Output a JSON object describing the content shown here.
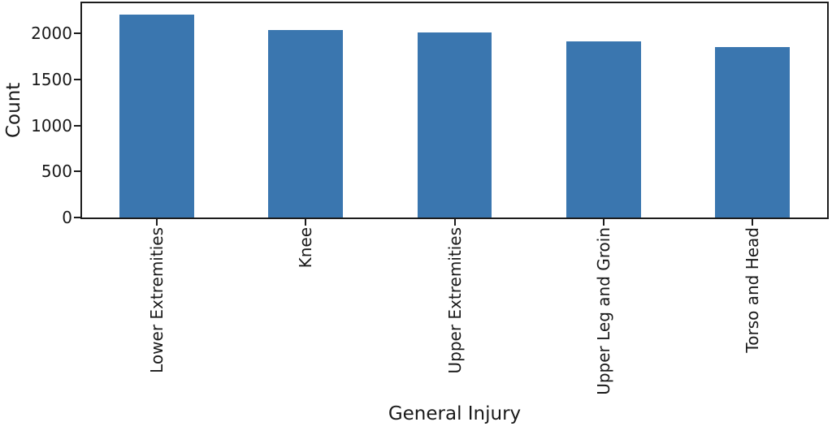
{
  "chart_data": {
    "type": "bar",
    "categories": [
      "Lower Extremities",
      "Knee",
      "Upper Extremities",
      "Upper Leg and Groin",
      "Torso and Head"
    ],
    "values": [
      2210,
      2035,
      2010,
      1915,
      1850
    ],
    "title": "",
    "xlabel": "General Injury",
    "ylabel": "Count",
    "ylim": [
      0,
      2330
    ],
    "yticks": [
      0,
      500,
      1000,
      1500,
      2000
    ],
    "ytick_labels": [
      "0",
      "500",
      "1000",
      "1500",
      "2000"
    ],
    "bar_color": "#3a76af",
    "bar_width_fraction": 0.5,
    "x_tick_label_rotation_deg": 90,
    "grid": false,
    "legend": "none",
    "frame_color": "#1c1c1c",
    "text_color": "#191919",
    "background_color": "#ffffff"
  }
}
